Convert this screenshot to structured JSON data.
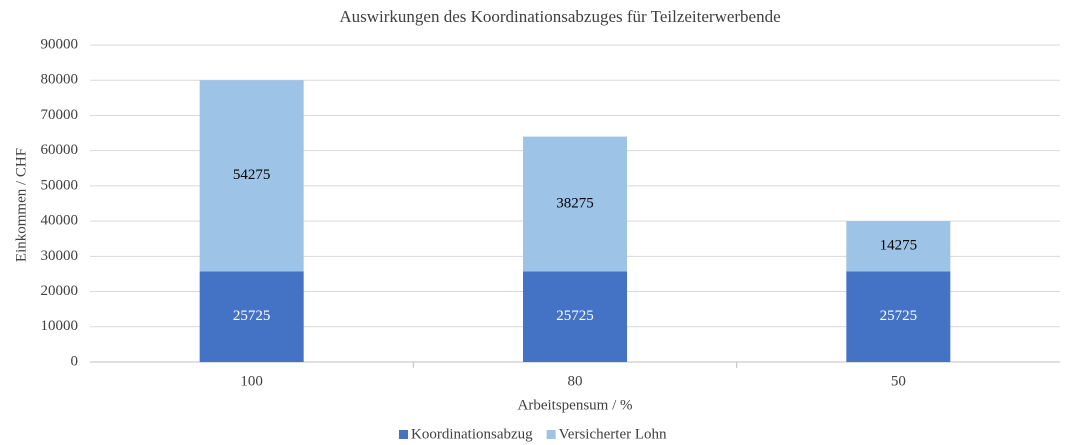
{
  "chart_data": {
    "type": "stacked_bar",
    "title": "Auswirkungen des Koordinationsabzuges für Teilzeiterwerbende",
    "x_label": "Arbeitspensum / %",
    "y_label": "Einkommen / CHF",
    "categories": [
      "100",
      "80",
      "50"
    ],
    "series": [
      {
        "name": "Koordinationsabzug",
        "color": "#4472c4",
        "values": [
          25725,
          25725,
          25725
        ]
      },
      {
        "name": "Versicherter Lohn",
        "color": "#9dc3e6",
        "values": [
          54275,
          38275,
          14275
        ]
      }
    ],
    "ylim": [
      0,
      90000
    ],
    "yticks": [
      0,
      10000,
      20000,
      30000,
      40000,
      50000,
      60000,
      70000,
      80000,
      90000
    ],
    "grid": true,
    "legend": "bottom"
  }
}
